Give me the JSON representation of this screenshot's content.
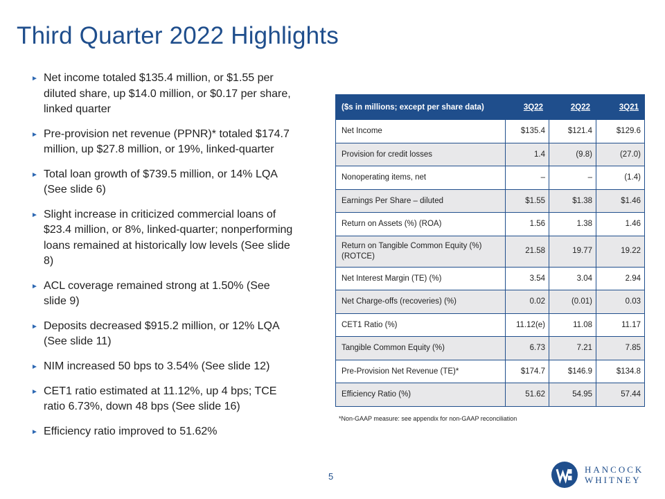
{
  "title": "Third Quarter 2022 Highlights",
  "bullets": [
    "Net income totaled $135.4 million, or $1.55 per diluted share, up $14.0 million, or $0.17 per share, linked quarter",
    "Pre-provision net revenue (PPNR)* totaled $174.7 million, up $27.8 million, or 19%, linked-quarter",
    "Total loan growth of $739.5 million, or 14% LQA (See slide 6)",
    "Slight increase in criticized commercial loans of $23.4 million, or 8%, linked-quarter; nonperforming loans remained at historically low levels (See slide 8)",
    "ACL coverage remained strong at 1.50% (See slide 9)",
    "Deposits decreased $915.2 million, or 12% LQA (See slide 11)",
    "NIM increased 50 bps to 3.54% (See slide 12)",
    "CET1 ratio estimated at 11.12%, up 4 bps;  TCE ratio 6.73%, down 48 bps (See slide 16)",
    "Efficiency ratio improved to 51.62%"
  ],
  "table": {
    "header": [
      "($s in millions; except per share data)",
      "3Q22",
      "2Q22",
      "3Q21"
    ],
    "rows": [
      [
        "Net Income",
        "$135.4",
        "$121.4",
        "$129.6"
      ],
      [
        "Provision for credit losses",
        "1.4",
        "(9.8)",
        "(27.0)"
      ],
      [
        "Nonoperating items, net",
        "–",
        "–",
        "(1.4)"
      ],
      [
        "Earnings Per Share – diluted",
        "$1.55",
        "$1.38",
        "$1.46"
      ],
      [
        "Return on Assets (%) (ROA)",
        "1.56",
        "1.38",
        "1.46"
      ],
      [
        "Return on Tangible Common Equity (%) (ROTCE)",
        "21.58",
        "19.77",
        "19.22"
      ],
      [
        "Net Interest Margin (TE) (%)",
        "3.54",
        "3.04",
        "2.94"
      ],
      [
        "Net Charge-offs (recoveries) (%)",
        "0.02",
        "(0.01)",
        "0.03"
      ],
      [
        "CET1 Ratio (%)",
        "11.12(e)",
        "11.08",
        "11.17"
      ],
      [
        "Tangible Common Equity (%)",
        "6.73",
        "7.21",
        "7.85"
      ],
      [
        "Pre-Provision Net Revenue (TE)*",
        "$174.7",
        "$146.9",
        "$134.8"
      ],
      [
        "Efficiency Ratio (%)",
        "51.62",
        "54.95",
        "57.44"
      ]
    ]
  },
  "footnote": "*Non-GAAP measure: see appendix for non-GAAP reconciliation",
  "page_number": "5",
  "logo": {
    "line1": "HANCOCK",
    "line2": "WHITNEY",
    "icon": "hancock-whitney-w-icon"
  },
  "colors": {
    "brand_blue": "#1f4e8c",
    "row_shade": "#e8e8ea"
  }
}
